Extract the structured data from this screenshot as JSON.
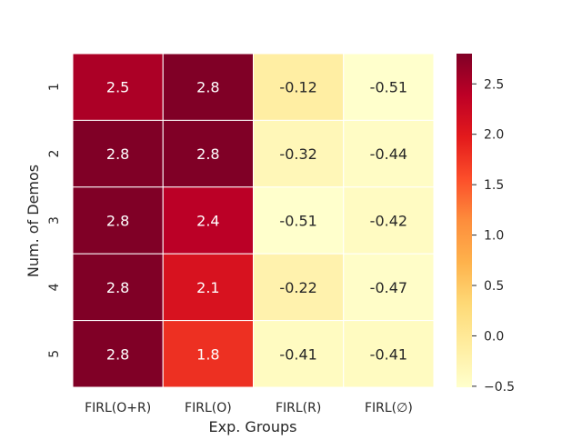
{
  "chart_data": {
    "type": "heatmap",
    "title": "",
    "xlabel": "Exp. Groups",
    "ylabel": "Num. of Demos",
    "x_categories": [
      "FIRL(O+R)",
      "FIRL(O)",
      "FIRL(R)",
      "FIRL(∅)"
    ],
    "y_categories": [
      "1",
      "2",
      "3",
      "4",
      "5"
    ],
    "values": [
      [
        2.5,
        2.8,
        -0.12,
        -0.51
      ],
      [
        2.8,
        2.8,
        -0.32,
        -0.44
      ],
      [
        2.8,
        2.4,
        -0.51,
        -0.42
      ],
      [
        2.8,
        2.1,
        -0.22,
        -0.47
      ],
      [
        2.8,
        1.8,
        -0.41,
        -0.41
      ]
    ],
    "cell_labels": [
      [
        "2.5",
        "2.8",
        "-0.12",
        "-0.51"
      ],
      [
        "2.8",
        "2.8",
        "-0.32",
        "-0.44"
      ],
      [
        "2.8",
        "2.4",
        "-0.51",
        "-0.42"
      ],
      [
        "2.8",
        "2.1",
        "-0.22",
        "-0.47"
      ],
      [
        "2.8",
        "1.8",
        "-0.41",
        "-0.41"
      ]
    ],
    "colormap": "YlOrRd",
    "color_range": [
      -0.51,
      2.8
    ],
    "colorbar": {
      "ticks": [
        2.5,
        2.0,
        1.5,
        1.0,
        0.5,
        0.0,
        -0.5
      ],
      "tick_labels": [
        "2.5",
        "2.0",
        "1.5",
        "1.0",
        "0.5",
        "0.0",
        "−0.5"
      ]
    },
    "grid": true,
    "legend": "colorbar-right"
  }
}
